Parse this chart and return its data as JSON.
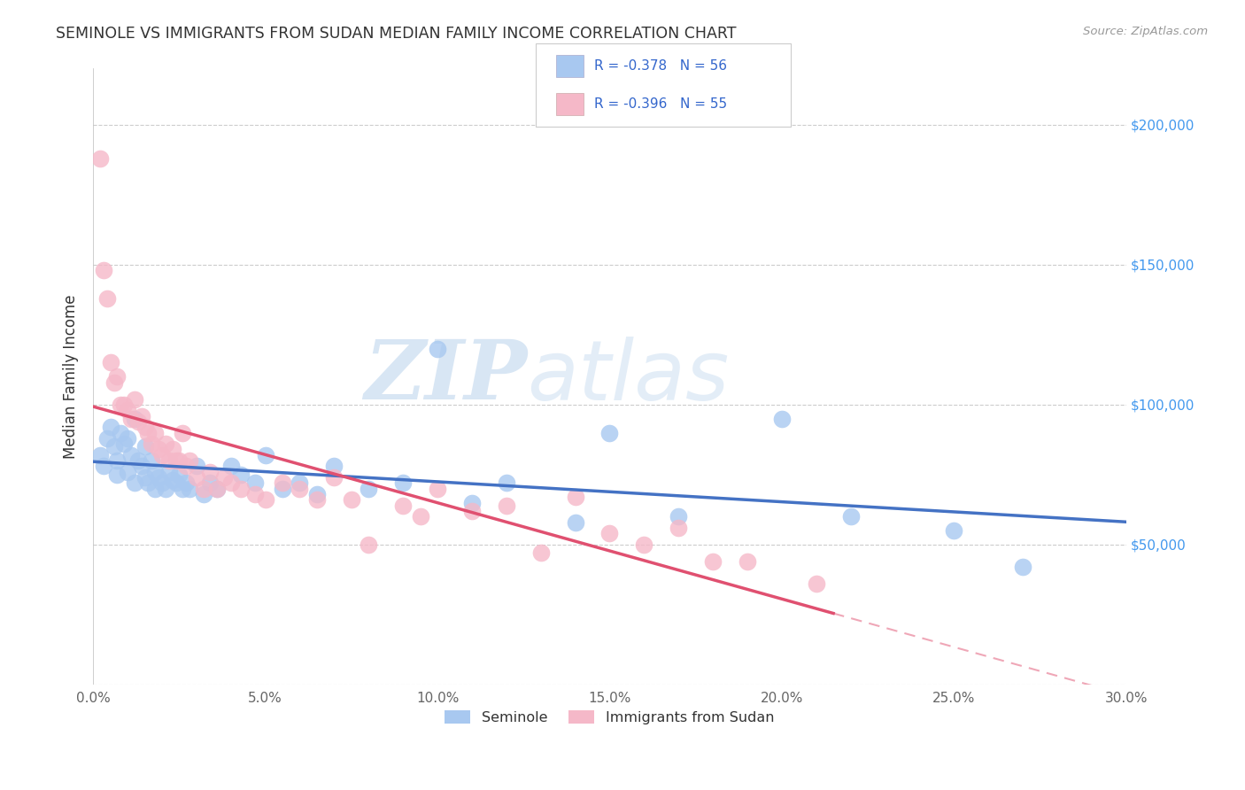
{
  "title": "SEMINOLE VS IMMIGRANTS FROM SUDAN MEDIAN FAMILY INCOME CORRELATION CHART",
  "source": "Source: ZipAtlas.com",
  "ylabel": "Median Family Income",
  "xlim": [
    0.0,
    0.3
  ],
  "ylim": [
    0,
    220000
  ],
  "xtick_labels": [
    "0.0%",
    "5.0%",
    "10.0%",
    "15.0%",
    "20.0%",
    "25.0%",
    "30.0%"
  ],
  "xtick_vals": [
    0.0,
    0.05,
    0.1,
    0.15,
    0.2,
    0.25,
    0.3
  ],
  "ytick_vals": [
    0,
    50000,
    100000,
    150000,
    200000
  ],
  "right_ytick_labels": [
    "$200,000",
    "$150,000",
    "$100,000",
    "$50,000"
  ],
  "right_ytick_vals": [
    200000,
    150000,
    100000,
    50000
  ],
  "legend_r_blue": "-0.378",
  "legend_n_blue": "56",
  "legend_r_pink": "-0.396",
  "legend_n_pink": "55",
  "legend_label_blue": "Seminole",
  "legend_label_pink": "Immigrants from Sudan",
  "blue_color": "#A8C8F0",
  "pink_color": "#F5B8C8",
  "blue_line_color": "#4472C4",
  "pink_line_color": "#E05070",
  "watermark_zip": "ZIP",
  "watermark_atlas": "atlas",
  "blue_scatter_x": [
    0.002,
    0.003,
    0.004,
    0.005,
    0.006,
    0.007,
    0.007,
    0.008,
    0.009,
    0.01,
    0.01,
    0.011,
    0.012,
    0.012,
    0.013,
    0.014,
    0.015,
    0.015,
    0.016,
    0.017,
    0.018,
    0.018,
    0.019,
    0.02,
    0.021,
    0.022,
    0.023,
    0.024,
    0.025,
    0.026,
    0.027,
    0.028,
    0.03,
    0.032,
    0.034,
    0.036,
    0.04,
    0.043,
    0.047,
    0.05,
    0.055,
    0.06,
    0.065,
    0.07,
    0.08,
    0.09,
    0.1,
    0.11,
    0.12,
    0.14,
    0.15,
    0.17,
    0.2,
    0.22,
    0.25,
    0.27
  ],
  "blue_scatter_y": [
    82000,
    78000,
    88000,
    92000,
    85000,
    80000,
    75000,
    90000,
    86000,
    88000,
    76000,
    82000,
    95000,
    72000,
    80000,
    78000,
    85000,
    74000,
    72000,
    80000,
    76000,
    70000,
    74000,
    72000,
    70000,
    76000,
    73000,
    72000,
    75000,
    70000,
    72000,
    70000,
    78000,
    68000,
    72000,
    70000,
    78000,
    75000,
    72000,
    82000,
    70000,
    72000,
    68000,
    78000,
    70000,
    72000,
    120000,
    65000,
    72000,
    58000,
    90000,
    60000,
    95000,
    60000,
    55000,
    42000
  ],
  "pink_scatter_x": [
    0.002,
    0.003,
    0.004,
    0.005,
    0.006,
    0.007,
    0.008,
    0.009,
    0.01,
    0.011,
    0.012,
    0.013,
    0.014,
    0.015,
    0.016,
    0.017,
    0.018,
    0.019,
    0.02,
    0.021,
    0.022,
    0.023,
    0.024,
    0.025,
    0.026,
    0.027,
    0.028,
    0.03,
    0.032,
    0.034,
    0.036,
    0.038,
    0.04,
    0.043,
    0.047,
    0.05,
    0.055,
    0.06,
    0.065,
    0.07,
    0.075,
    0.08,
    0.09,
    0.095,
    0.1,
    0.11,
    0.12,
    0.13,
    0.14,
    0.15,
    0.16,
    0.17,
    0.18,
    0.19,
    0.21
  ],
  "pink_scatter_y": [
    188000,
    148000,
    138000,
    115000,
    108000,
    110000,
    100000,
    100000,
    98000,
    95000,
    102000,
    94000,
    96000,
    92000,
    90000,
    86000,
    90000,
    84000,
    82000,
    86000,
    80000,
    84000,
    80000,
    80000,
    90000,
    78000,
    80000,
    74000,
    70000,
    76000,
    70000,
    74000,
    72000,
    70000,
    68000,
    66000,
    72000,
    70000,
    66000,
    74000,
    66000,
    50000,
    64000,
    60000,
    70000,
    62000,
    64000,
    47000,
    67000,
    54000,
    50000,
    56000,
    44000,
    44000,
    36000
  ]
}
